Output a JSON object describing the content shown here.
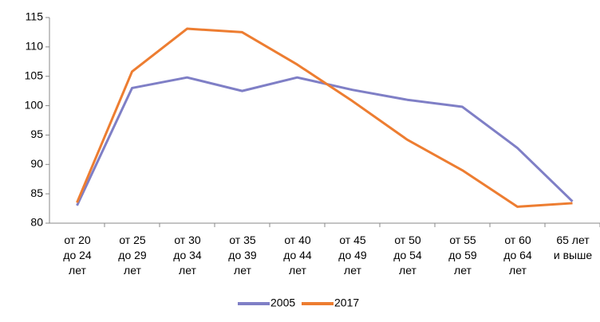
{
  "chart_data": {
    "type": "line",
    "categories": [
      "от 20\nдо 24\nлет",
      "от 25\nдо 29\nлет",
      "от 30\nдо 34\nлет",
      "от 35\nдо 39\nлет",
      "от 40\nдо 44\nлет",
      "от 45\nдо 49\nлет",
      "от 50\nдо 54\nлет",
      "от 55\nдо 59\nлет",
      "от 60\nдо 64\nлет",
      "65 лет\nи выше"
    ],
    "series": [
      {
        "name": "2005",
        "color": "#7f7fc6",
        "values": [
          83,
          103,
          104.8,
          102.5,
          104.8,
          102.7,
          101,
          99.8,
          92.8,
          83.7
        ]
      },
      {
        "name": "2017",
        "color": "#ed7d31",
        "values": [
          83.5,
          105.8,
          113.1,
          112.5,
          107,
          100.8,
          94.2,
          89,
          82.8,
          83.4
        ]
      }
    ],
    "ylim": [
      80,
      115
    ],
    "yticks": [
      80,
      85,
      90,
      95,
      100,
      105,
      110,
      115
    ],
    "grid": false,
    "legend": "bottom"
  }
}
